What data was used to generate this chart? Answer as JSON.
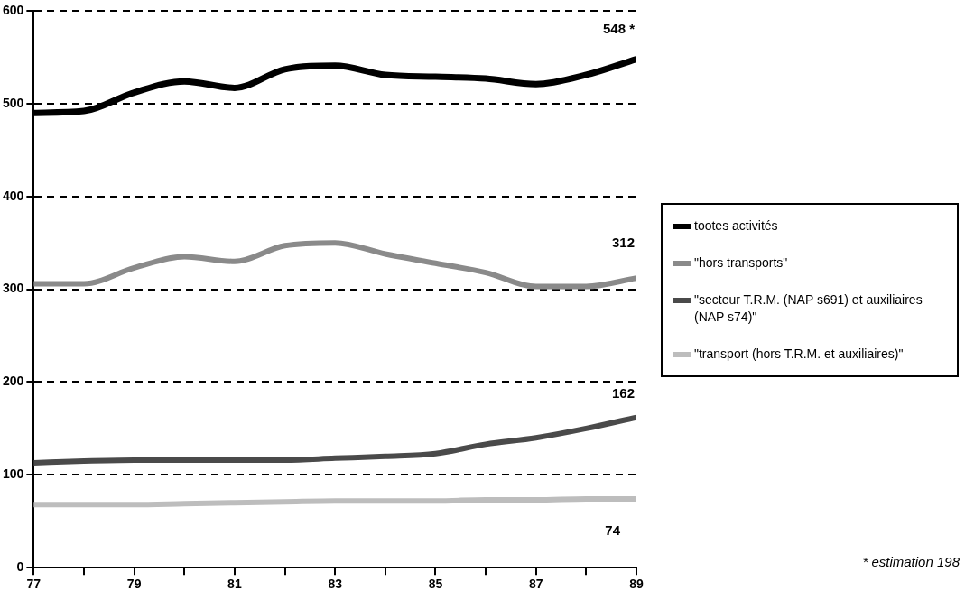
{
  "chart_data": {
    "type": "line",
    "x": [
      77,
      78,
      79,
      80,
      81,
      82,
      83,
      84,
      85,
      86,
      87,
      88,
      89
    ],
    "xlim": [
      77,
      89
    ],
    "xticks": [
      77,
      {
        "value": 78,
        "label": null
      },
      79,
      {
        "value": 80,
        "label": null
      },
      81,
      {
        "value": 82,
        "label": null
      },
      83,
      {
        "value": 84,
        "label": null
      },
      85,
      {
        "value": 86,
        "label": null
      },
      87,
      {
        "value": 88,
        "label": null
      },
      89
    ],
    "ylim": [
      0,
      600
    ],
    "yticks": [
      0,
      100,
      200,
      300,
      400,
      500,
      600
    ],
    "grid": "y",
    "legend": "right",
    "marker": "none",
    "series": [
      {
        "name": "tootes activités",
        "color": "#000000",
        "values": [
          490,
          492,
          512,
          524,
          517,
          537,
          541,
          531,
          529,
          527,
          521,
          531,
          548
        ],
        "value_labels": [
          null,
          null,
          null,
          null,
          null,
          null,
          null,
          null,
          null,
          null,
          null,
          null,
          "548 *"
        ]
      },
      {
        "name": "\"hors transports\"",
        "color": "#8a8a8a",
        "values": [
          306,
          306,
          323,
          335,
          330,
          347,
          350,
          338,
          328,
          318,
          303,
          303,
          312
        ],
        "value_labels": [
          null,
          null,
          null,
          null,
          null,
          null,
          null,
          null,
          null,
          null,
          null,
          null,
          "312"
        ]
      },
      {
        "name": "\"secteur T.R.M. (NAP s691) et auxiliaires (NAP s74)\"",
        "color": "#4a4a4a",
        "values": [
          113,
          115,
          116,
          116,
          116,
          116,
          118,
          120,
          123,
          133,
          140,
          150,
          162
        ],
        "value_labels": [
          null,
          null,
          null,
          null,
          null,
          null,
          null,
          null,
          null,
          null,
          null,
          null,
          "162"
        ]
      },
      {
        "name": "\"transport (hors T.R.M. et auxiliaires)\"",
        "color": "#bdbdbd",
        "values": [
          68,
          68,
          68,
          69,
          70,
          71,
          72,
          72,
          72,
          73,
          73,
          74,
          74
        ],
        "value_labels": [
          null,
          null,
          null,
          null,
          null,
          null,
          null,
          null,
          null,
          null,
          null,
          null,
          "74"
        ]
      }
    ],
    "annotations": [
      "* estimation 198"
    ]
  }
}
